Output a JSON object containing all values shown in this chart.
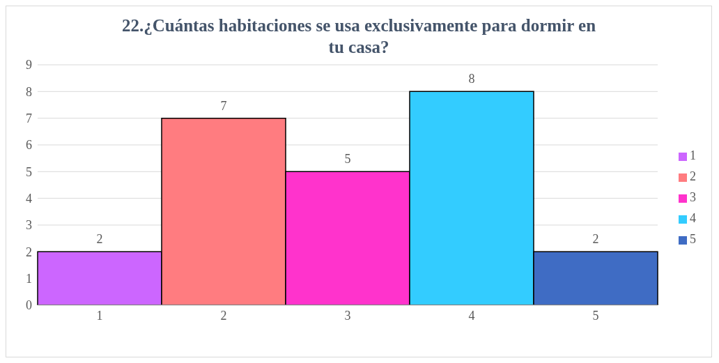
{
  "chart_data": {
    "type": "bar",
    "title": "22.¿Cuántas habitaciones se usa exclusivamente para dormir en tu casa?",
    "categories": [
      "1",
      "2",
      "3",
      "4",
      "5"
    ],
    "series": [
      {
        "name": "1",
        "color": "#cc66ff",
        "values": [
          2,
          null,
          null,
          null,
          null
        ]
      },
      {
        "name": "2",
        "color": "#ff7c80",
        "values": [
          null,
          7,
          null,
          null,
          null
        ]
      },
      {
        "name": "3",
        "color": "#ff33cc",
        "values": [
          null,
          null,
          5,
          null,
          null
        ]
      },
      {
        "name": "4",
        "color": "#33ccff",
        "values": [
          null,
          null,
          null,
          8,
          null
        ]
      },
      {
        "name": "5",
        "color": "#3f6cc4",
        "values": [
          null,
          null,
          null,
          null,
          2
        ]
      }
    ],
    "stacked": true,
    "ylim": [
      0,
      9
    ],
    "yticks": [
      0,
      1,
      2,
      3,
      4,
      5,
      6,
      7,
      8,
      9
    ],
    "grid": "y",
    "legend": "right",
    "data_labels": true
  }
}
